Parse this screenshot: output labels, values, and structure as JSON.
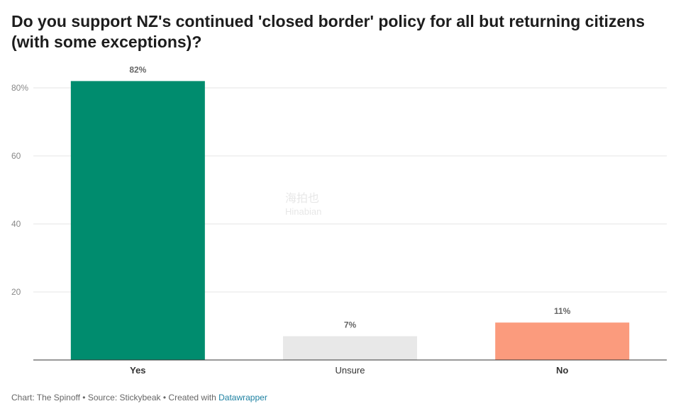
{
  "title": "Do you support NZ's continued 'closed border' policy for all but returning citizens (with some exceptions)?",
  "chart_data": {
    "type": "bar",
    "title": "Do you support NZ's continued 'closed border' policy for all but returning citizens (with some exceptions)?",
    "categories": [
      "Yes",
      "Unsure",
      "No"
    ],
    "values": [
      82,
      7,
      11
    ],
    "value_labels": [
      "82%",
      "7%",
      "11%"
    ],
    "colors": [
      "#008c6e",
      "#e8e8e8",
      "#fb9b7d"
    ],
    "bold_categories": [
      true,
      false,
      true
    ],
    "ylim": [
      0,
      85
    ],
    "yticks": [
      20,
      40,
      60,
      80
    ],
    "ytick_labels": [
      "20",
      "40",
      "60",
      "80%"
    ],
    "xlabel": "",
    "ylabel": "",
    "grid": true
  },
  "footer": {
    "source_text": "Chart: The Spinoff • Source: Stickybeak • Created with ",
    "link_text": "Datawrapper"
  },
  "watermark": {
    "line1": "海拍也",
    "line2": "Hinabian"
  }
}
